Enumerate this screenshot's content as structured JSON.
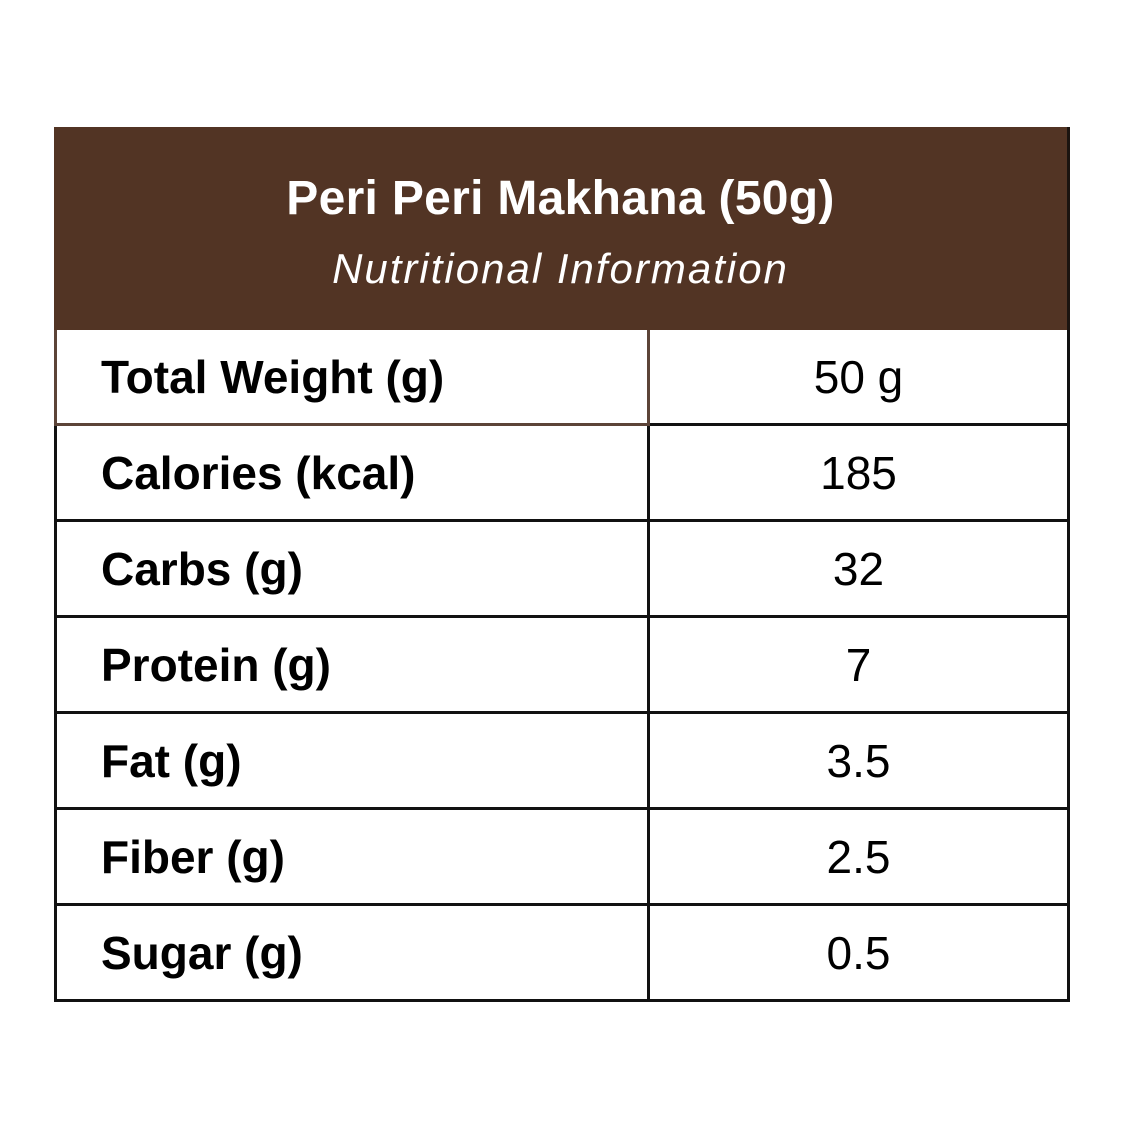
{
  "header": {
    "title": "Peri Peri Makhana (50g)",
    "subtitle": "Nutritional Information",
    "background_color": "#523424",
    "text_color": "#ffffff"
  },
  "rows": [
    {
      "label": "Total Weight (g)",
      "value": "50 g"
    },
    {
      "label": "Calories (kcal)",
      "value": "185"
    },
    {
      "label": "Carbs (g)",
      "value": "32"
    },
    {
      "label": "Protein (g)",
      "value": "7"
    },
    {
      "label": "Fat (g)",
      "value": "3.5"
    },
    {
      "label": "Fiber (g)",
      "value": "2.5"
    },
    {
      "label": "Sugar (g)",
      "value": "0.5"
    }
  ]
}
